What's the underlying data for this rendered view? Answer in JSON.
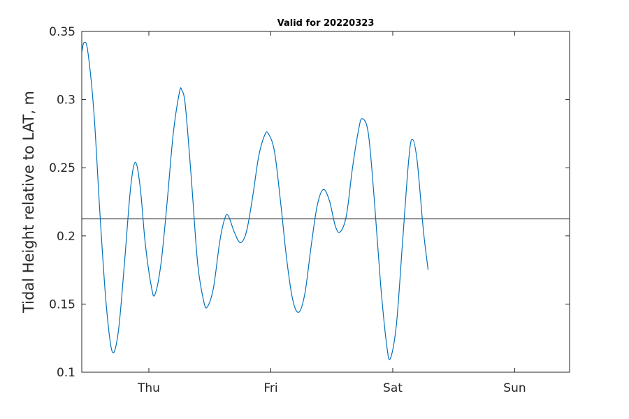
{
  "chart_data": {
    "type": "line",
    "title": "Valid for 20220323",
    "xlabel": "",
    "ylabel": "Tidal Height relative to LAT, m",
    "x_ticks": [
      "Thu",
      "Fri",
      "Sat",
      "Sun"
    ],
    "x_tick_positions_days": [
      1,
      2,
      3,
      4
    ],
    "xlim_days": [
      0.45,
      4.45
    ],
    "ylim": [
      0.1,
      0.35
    ],
    "y_ticks": [
      0.1,
      0.15,
      0.2,
      0.25,
      0.3,
      0.35
    ],
    "y_tick_labels": [
      "0.1",
      "0.15",
      "0.2",
      "0.25",
      "0.3",
      "0.35"
    ],
    "grid": false,
    "reference_line": {
      "y": 0.2125,
      "color": "#000000"
    },
    "series": [
      {
        "color": "#0072bd",
        "points": [
          [
            0.45,
            0.335
          ],
          [
            0.47,
            0.342
          ],
          [
            0.5,
            0.335
          ],
          [
            0.55,
            0.29
          ],
          [
            0.6,
            0.215
          ],
          [
            0.65,
            0.15
          ],
          [
            0.7,
            0.115
          ],
          [
            0.75,
            0.13
          ],
          [
            0.8,
            0.18
          ],
          [
            0.85,
            0.235
          ],
          [
            0.89,
            0.254
          ],
          [
            0.93,
            0.235
          ],
          [
            0.97,
            0.195
          ],
          [
            1.02,
            0.163
          ],
          [
            1.05,
            0.157
          ],
          [
            1.1,
            0.18
          ],
          [
            1.15,
            0.225
          ],
          [
            1.2,
            0.275
          ],
          [
            1.25,
            0.305
          ],
          [
            1.27,
            0.307
          ],
          [
            1.3,
            0.295
          ],
          [
            1.35,
            0.24
          ],
          [
            1.4,
            0.18
          ],
          [
            1.45,
            0.152
          ],
          [
            1.48,
            0.148
          ],
          [
            1.53,
            0.162
          ],
          [
            1.58,
            0.195
          ],
          [
            1.62,
            0.212
          ],
          [
            1.65,
            0.215
          ],
          [
            1.7,
            0.203
          ],
          [
            1.75,
            0.195
          ],
          [
            1.8,
            0.203
          ],
          [
            1.85,
            0.228
          ],
          [
            1.9,
            0.258
          ],
          [
            1.95,
            0.274
          ],
          [
            1.98,
            0.275
          ],
          [
            2.03,
            0.262
          ],
          [
            2.08,
            0.225
          ],
          [
            2.13,
            0.183
          ],
          [
            2.18,
            0.153
          ],
          [
            2.23,
            0.144
          ],
          [
            2.28,
            0.158
          ],
          [
            2.33,
            0.192
          ],
          [
            2.38,
            0.222
          ],
          [
            2.43,
            0.234
          ],
          [
            2.48,
            0.226
          ],
          [
            2.53,
            0.207
          ],
          [
            2.57,
            0.203
          ],
          [
            2.62,
            0.215
          ],
          [
            2.67,
            0.25
          ],
          [
            2.72,
            0.278
          ],
          [
            2.75,
            0.286
          ],
          [
            2.8,
            0.275
          ],
          [
            2.85,
            0.225
          ],
          [
            2.9,
            0.165
          ],
          [
            2.95,
            0.12
          ],
          [
            2.98,
            0.11
          ],
          [
            3.03,
            0.135
          ],
          [
            3.08,
            0.195
          ],
          [
            3.13,
            0.255
          ],
          [
            3.16,
            0.271
          ],
          [
            3.2,
            0.255
          ],
          [
            3.25,
            0.205
          ],
          [
            3.29,
            0.175
          ]
        ]
      }
    ]
  }
}
